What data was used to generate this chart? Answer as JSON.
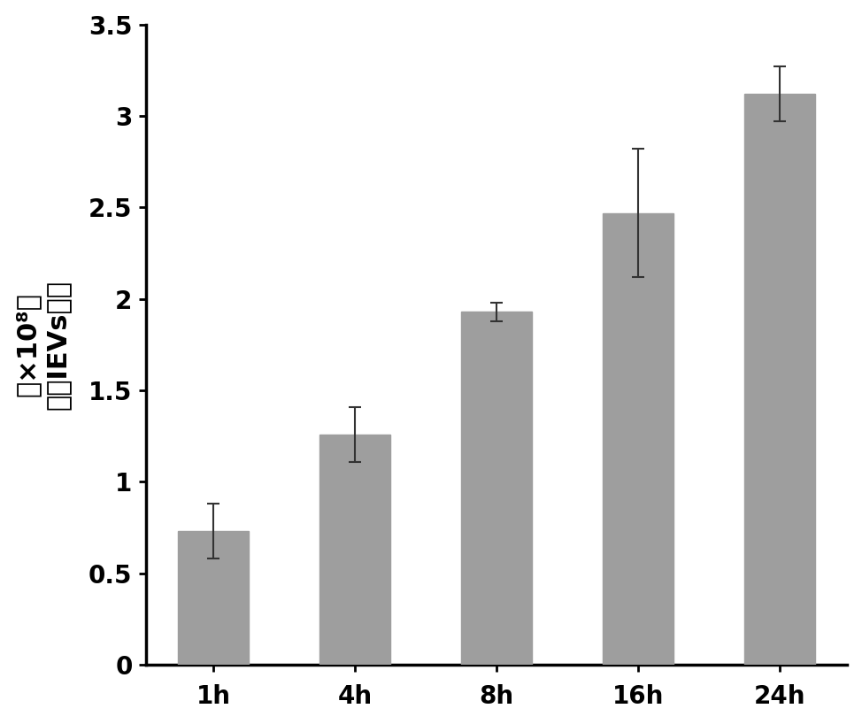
{
  "categories": [
    "1h",
    "4h",
    "8h",
    "16h",
    "24h"
  ],
  "values": [
    0.73,
    1.26,
    1.93,
    2.47,
    3.12
  ],
  "errors": [
    0.15,
    0.15,
    0.05,
    0.35,
    0.15
  ],
  "bar_color": "#9E9E9E",
  "bar_edge_color": "#9E9E9E",
  "error_color": "#333333",
  "ylim": [
    0,
    3.5
  ],
  "yticks": [
    0,
    0.5,
    1.0,
    1.5,
    2.0,
    2.5,
    3.0,
    3.5
  ],
  "ylabel_main": "总的IEVs数目",
  "ylabel_unit": "（×10⁸）",
  "ylabel_fontsize": 22,
  "tick_fontsize": 20,
  "bar_width": 0.5,
  "background_color": "#ffffff",
  "capsize": 5,
  "error_linewidth": 1.5
}
